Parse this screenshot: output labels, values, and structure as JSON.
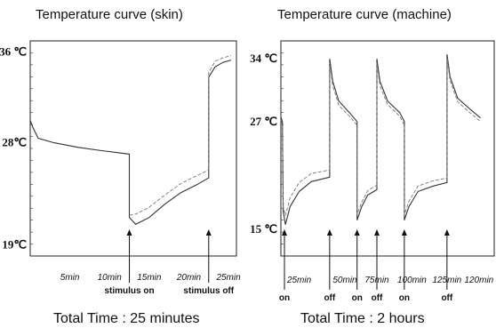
{
  "chart_data": [
    {
      "type": "line",
      "title": "Temperature curve (skin)",
      "caption": "Total Time : 25 minutes",
      "ylabel": "",
      "xlabel": "",
      "grid": false,
      "y_labels": [
        "36 ℃",
        "28℃",
        "19℃"
      ],
      "y_label_values": [
        36,
        28,
        19
      ],
      "ylim": [
        18,
        37
      ],
      "xlim": [
        0,
        26
      ],
      "x_time_labels": [
        "5min",
        "10min",
        "15min",
        "20min",
        "25min"
      ],
      "x_time_values": [
        5,
        10,
        15,
        20,
        25
      ],
      "annotations": [
        {
          "text": "stimulus on",
          "x": 12.5
        },
        {
          "text": "stimulus off",
          "x": 22.5
        }
      ],
      "series": [
        {
          "points": [
            [
              0,
              30
            ],
            [
              0.3,
              29.4
            ],
            [
              1,
              28.4
            ],
            [
              3,
              28.0
            ],
            [
              6,
              27.6
            ],
            [
              9,
              27.3
            ],
            [
              12.5,
              27.0
            ],
            [
              12.5,
              21.4
            ],
            [
              13.3,
              20.8
            ],
            [
              15,
              21.4
            ],
            [
              17,
              22.6
            ],
            [
              19,
              23.6
            ],
            [
              21,
              24.3
            ],
            [
              22.5,
              24.9
            ],
            [
              22.5,
              33.8
            ],
            [
              23.3,
              34.7
            ],
            [
              24.3,
              35.1
            ],
            [
              25.3,
              35.3
            ]
          ]
        },
        {
          "points": [
            [
              12.5,
              21.6
            ],
            [
              13.3,
              21.7
            ],
            [
              15,
              22.3
            ],
            [
              17,
              23.4
            ],
            [
              19,
              24.4
            ],
            [
              21,
              25.1
            ],
            [
              22.5,
              25.6
            ],
            [
              22.5,
              34.2
            ],
            [
              23.3,
              35.2
            ],
            [
              24.3,
              35.5
            ],
            [
              25.3,
              35.7
            ]
          ]
        }
      ]
    },
    {
      "type": "line",
      "title": "Temperature curve (machine)",
      "caption": "Total  Time  :  2 hours",
      "ylabel": "",
      "xlabel": "",
      "grid": false,
      "y_labels": [
        "34 ℃",
        "27 ℃",
        "15 ℃"
      ],
      "y_label_values": [
        34,
        27,
        15
      ],
      "ylim": [
        12,
        36
      ],
      "xlim": [
        0,
        140
      ],
      "x_time_labels": [
        "25min",
        "50min",
        "75min",
        "100min",
        "125min",
        "120min"
      ],
      "x_time_values": [
        12,
        42,
        63,
        86,
        109,
        130
      ],
      "switch_labels": [
        "on",
        "off",
        "on",
        "off",
        "on",
        "off"
      ],
      "switch_values": [
        0,
        32,
        50,
        63,
        81,
        109
      ],
      "series": [
        {
          "points": [
            [
              0,
              27.5
            ],
            [
              1,
              27
            ],
            [
              1.5,
              17
            ],
            [
              3,
              15.5
            ],
            [
              6,
              17.5
            ],
            [
              12,
              19.2
            ],
            [
              20,
              20.3
            ],
            [
              32,
              20.8
            ],
            [
              32,
              34
            ],
            [
              34,
              31.5
            ],
            [
              38,
              29.3
            ],
            [
              45,
              28
            ],
            [
              50,
              27
            ],
            [
              50,
              16
            ],
            [
              53,
              17.5
            ],
            [
              57,
              18.8
            ],
            [
              63,
              19.4
            ],
            [
              63,
              34
            ],
            [
              65,
              31.5
            ],
            [
              70,
              29.3
            ],
            [
              78,
              28
            ],
            [
              81,
              27
            ],
            [
              81,
              16
            ],
            [
              84,
              17.5
            ],
            [
              90,
              19.2
            ],
            [
              100,
              19.8
            ],
            [
              109,
              20.2
            ],
            [
              109,
              34.5
            ],
            [
              111,
              32
            ],
            [
              116,
              29.6
            ],
            [
              124,
              28.4
            ],
            [
              131,
              27.4
            ]
          ]
        },
        {
          "points": [
            [
              0,
              27.2
            ],
            [
              1,
              26.7
            ],
            [
              1.5,
              17.5
            ],
            [
              3,
              16.5
            ],
            [
              6,
              18.5
            ],
            [
              12,
              20.2
            ],
            [
              20,
              21.2
            ],
            [
              32,
              21.6
            ],
            [
              32,
              33.6
            ],
            [
              34,
              31
            ],
            [
              38,
              28.8
            ],
            [
              45,
              27.6
            ],
            [
              50,
              26.6
            ],
            [
              50,
              16.6
            ],
            [
              53,
              18
            ],
            [
              57,
              19.3
            ],
            [
              63,
              19.9
            ],
            [
              63,
              33.6
            ],
            [
              65,
              31
            ],
            [
              70,
              28.9
            ],
            [
              78,
              27.6
            ],
            [
              81,
              26.6
            ],
            [
              81,
              16.6
            ],
            [
              84,
              18.1
            ],
            [
              90,
              19.8
            ],
            [
              100,
              20.4
            ],
            [
              109,
              20.7
            ],
            [
              109,
              34.1
            ],
            [
              111,
              31.6
            ],
            [
              116,
              29.2
            ],
            [
              124,
              28
            ],
            [
              131,
              27
            ]
          ]
        }
      ]
    }
  ]
}
